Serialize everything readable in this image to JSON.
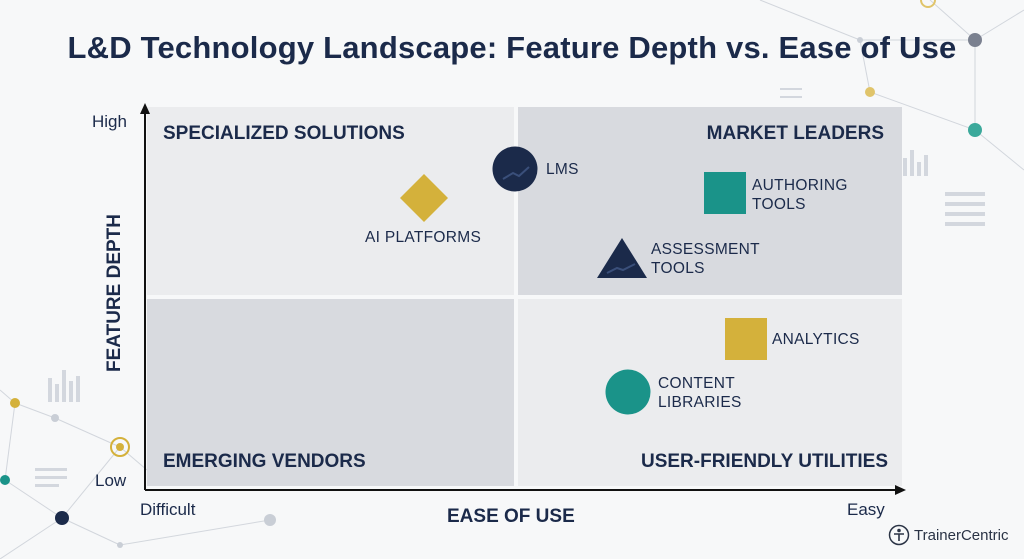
{
  "title": "L&D Technology Landscape: Feature Depth vs. Ease of Use",
  "axes": {
    "x_title": "EASE OF USE",
    "y_title": "FEATURE DEPTH",
    "x_low": "Difficult",
    "x_high": "Easy",
    "y_low": "Low",
    "y_high": "High"
  },
  "quadrants": {
    "top_left": "SPECIALIZED SOLUTIONS",
    "top_right": "MARKET LEADERS",
    "bottom_left": "EMERGING VENDORS",
    "bottom_right": "USER-FRIENDLY UTILITIES"
  },
  "items": [
    {
      "label_line1": "LMS",
      "label_line2": "",
      "shape": "circle",
      "color": "#1b2a4a"
    },
    {
      "label_line1": "AI PLATFORMS",
      "label_line2": "",
      "shape": "diamond",
      "color": "#d4b13b"
    },
    {
      "label_line1": "AUTHORING",
      "label_line2": "TOOLS",
      "shape": "square",
      "color": "#1a9389"
    },
    {
      "label_line1": "ASSESSMENT",
      "label_line2": "TOOLS",
      "shape": "triangle",
      "color": "#1b2a4a"
    },
    {
      "label_line1": "ANALYTICS",
      "label_line2": "",
      "shape": "square",
      "color": "#d4b13b"
    },
    {
      "label_line1": "CONTENT",
      "label_line2": "LIBRARIES",
      "shape": "circle",
      "color": "#1a9389"
    }
  ],
  "brand": {
    "name": "TrainerCentric",
    "icon": "trainer-figure-icon"
  },
  "colors": {
    "navy": "#1b2a4a",
    "gold": "#d4b13b",
    "teal": "#1a9389"
  }
}
